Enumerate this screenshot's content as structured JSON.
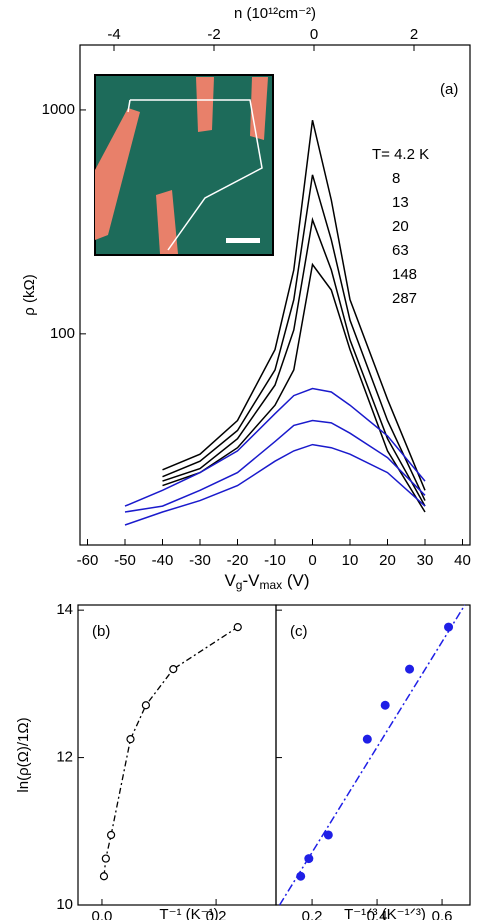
{
  "chart_data": [
    {
      "type": "line",
      "label": "(a)",
      "log_y": true,
      "xlabel_parts": [
        "V",
        "g",
        "-V",
        "max",
        " (V)"
      ],
      "ylabel": "ρ  (kΩ)",
      "x2label": "n (10¹²cm⁻²)",
      "xlim": [
        -62,
        42
      ],
      "ylim": [
        11.4,
        1950
      ],
      "xticks": [
        -60,
        -50,
        -40,
        -30,
        -20,
        -10,
        0,
        10,
        20,
        30,
        40
      ],
      "yticks": [
        100,
        1000
      ],
      "x2lim": [
        -4.68,
        3.12
      ],
      "x2ticks": [
        -4,
        -2,
        0,
        2
      ],
      "annotations": [
        "T= 4.2 K",
        "8",
        "13",
        "20",
        "63",
        "148",
        "287"
      ],
      "series": [
        {
          "color": "#000000",
          "x": [
            -40,
            -30,
            -20,
            -10,
            -5,
            0,
            5,
            10,
            20,
            30
          ],
          "values": [
            24.7,
            29,
            41,
            85,
            193,
            900,
            396,
            142,
            51,
            20
          ]
        },
        {
          "color": "#000000",
          "x": [
            -40,
            -30,
            -20,
            -10,
            -5,
            0,
            5,
            10,
            20,
            30
          ],
          "values": [
            23,
            27,
            37,
            69,
            142,
            513,
            263,
            115,
            41,
            18
          ]
        },
        {
          "color": "#000000",
          "x": [
            -40,
            -30,
            -20,
            -10,
            -5,
            0,
            5,
            10,
            20,
            30
          ],
          "values": [
            22,
            25,
            34,
            59,
            104,
            323,
            193,
            94,
            34,
            17
          ]
        },
        {
          "color": "#000000",
          "x": [
            -40,
            -30,
            -20,
            -10,
            -5,
            0,
            5,
            10,
            20,
            30
          ],
          "values": [
            21,
            24,
            31,
            48,
            69,
            204,
            157,
            85,
            30,
            16
          ]
        },
        {
          "color": "#1a1acc",
          "x": [
            -50,
            -40,
            -30,
            -20,
            -10,
            -5,
            0,
            5,
            10,
            20,
            30
          ],
          "values": [
            17,
            20,
            24,
            30,
            44,
            53,
            57,
            55,
            48,
            35,
            22
          ]
        },
        {
          "color": "#1a1acc",
          "x": [
            -50,
            -40,
            -30,
            -20,
            -10,
            -5,
            0,
            5,
            10,
            20,
            30
          ],
          "values": [
            16,
            17,
            20,
            24,
            33,
            39,
            41,
            40,
            36,
            28,
            19
          ]
        },
        {
          "color": "#1a1acc",
          "x": [
            -50,
            -40,
            -30,
            -20,
            -10,
            -5,
            0,
            5,
            10,
            20,
            30
          ],
          "values": [
            14,
            16,
            18,
            21,
            27,
            30,
            32,
            31,
            29,
            24,
            17
          ]
        }
      ]
    },
    {
      "type": "line",
      "label": "(b)",
      "marker": "open-circle",
      "dashed": true,
      "color": "#000000",
      "ylabel": "ln(ρ(Ω)/1Ω)",
      "xlabel": "T⁻¹ (K⁻¹)",
      "xlim": [
        -0.042,
        0.305
      ],
      "ylim": [
        10,
        14.07
      ],
      "xticks": [
        {
          "value": 0,
          "label": "0.0"
        },
        0.2
      ],
      "yticks": [
        10,
        12,
        14
      ],
      "x": [
        0.0035,
        0.0068,
        0.016,
        0.05,
        0.077,
        0.125,
        0.238
      ],
      "values": [
        10.39,
        10.63,
        10.95,
        12.25,
        12.71,
        13.2,
        13.77
      ]
    },
    {
      "type": "scatter",
      "label": "(c)",
      "marker": "filled-circle",
      "color": "#1f1fe6",
      "xlabel": "T⁻¹ᐟ³ (K⁻¹ᐟ³)",
      "ytick_labels": false,
      "xlim": [
        0.089,
        0.686
      ],
      "ylim": [
        10,
        14.07
      ],
      "xticks": [
        0.2,
        0.4,
        0.6
      ],
      "yticks": [
        10,
        12,
        14
      ],
      "x": [
        0.165,
        0.19,
        0.25,
        0.37,
        0.425,
        0.5,
        0.62
      ],
      "values": [
        10.39,
        10.63,
        10.95,
        12.25,
        12.71,
        13.2,
        13.77
      ],
      "fit": {
        "x": [
          0.1,
          0.67
        ],
        "values": [
          10,
          14.07
        ]
      }
    }
  ]
}
